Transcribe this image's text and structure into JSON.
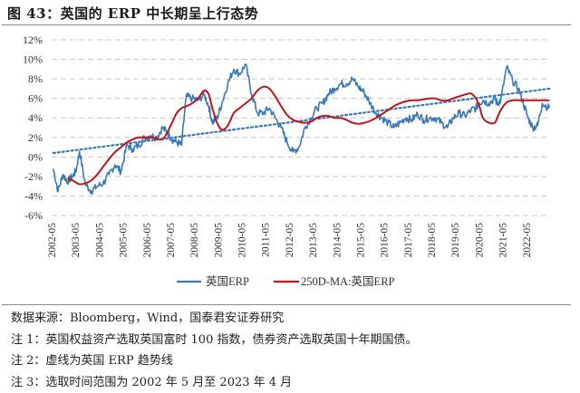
{
  "title": "图 43：英国的 ERP 中长期呈上行态势",
  "notes": {
    "source": "数据来源：Bloomberg，Wind，国泰君安证券研究",
    "note1": "注 1：英国权益资产选取英国富时 100 指数，债券资产选取英国十年期国债。",
    "note2": "注 2：虚线为英国 ERP 趋势线",
    "note3": "注 3：选取时间范围为 2002 年 5 月至 2023 年 4 月"
  },
  "colors": {
    "erp": "#3a78b8",
    "ma": "#c0141c",
    "trend": "#3a78b8",
    "grid": "#c8c8c8"
  },
  "chart_data": {
    "type": "line",
    "title": "图 43：英国的 ERP 中长期呈上行态势",
    "xlabel": "",
    "ylabel": "",
    "ylim": [
      -0.06,
      0.12
    ],
    "yticks": [
      "12%",
      "10%",
      "8%",
      "6%",
      "4%",
      "2%",
      "0%",
      "-2%",
      "-4%",
      "-6%"
    ],
    "xticks": [
      "2002-05",
      "2003-05",
      "2004-05",
      "2005-05",
      "2006-05",
      "2007-05",
      "2008-05",
      "2009-05",
      "2010-05",
      "2011-05",
      "2012-05",
      "2013-05",
      "2014-05",
      "2015-05",
      "2016-05",
      "2017-05",
      "2018-05",
      "2019-05",
      "2020-05",
      "2021-05",
      "2022-05"
    ],
    "grid": "horizontal dashed",
    "legend_position": "bottom",
    "legend": [
      "英国ERP",
      "250D-MA:英国ERP"
    ],
    "x": [
      2002.4,
      2002.6,
      2002.8,
      2003.0,
      2003.2,
      2003.35,
      2003.5,
      2003.75,
      2004.0,
      2004.25,
      2004.5,
      2004.75,
      2005.0,
      2005.25,
      2005.5,
      2005.75,
      2006.0,
      2006.25,
      2006.5,
      2006.75,
      2007.0,
      2007.2,
      2007.4,
      2007.6,
      2007.8,
      2008.0,
      2008.25,
      2008.5,
      2008.75,
      2008.95,
      2009.1,
      2009.3,
      2009.5,
      2009.75,
      2010.0,
      2010.25,
      2010.5,
      2010.75,
      2011.0,
      2011.25,
      2011.5,
      2011.75,
      2012.0,
      2012.25,
      2012.5,
      2012.75,
      2013.0,
      2013.25,
      2013.5,
      2013.75,
      2014.0,
      2014.25,
      2014.5,
      2014.75,
      2015.0,
      2015.25,
      2015.5,
      2015.75,
      2016.0,
      2016.25,
      2016.5,
      2016.75,
      2017.0,
      2017.25,
      2017.5,
      2017.75,
      2018.0,
      2018.25,
      2018.5,
      2018.75,
      2019.0,
      2019.25,
      2019.5,
      2019.75,
      2020.0,
      2020.2,
      2020.35,
      2020.5,
      2020.75,
      2021.0,
      2021.1,
      2021.25,
      2021.5,
      2021.75,
      2022.0,
      2022.2,
      2022.4,
      2022.6,
      2022.8,
      2023.0,
      2023.3
    ],
    "series": [
      {
        "name": "英国ERP",
        "values": [
          -0.012,
          -0.035,
          -0.018,
          -0.025,
          -0.02,
          -0.015,
          0.006,
          -0.028,
          -0.035,
          -0.03,
          -0.027,
          -0.018,
          -0.008,
          -0.015,
          0.012,
          0.008,
          0.012,
          0.02,
          0.022,
          0.02,
          0.03,
          0.025,
          0.018,
          0.015,
          0.012,
          0.062,
          0.06,
          0.058,
          0.064,
          0.052,
          0.035,
          0.04,
          0.055,
          0.075,
          0.09,
          0.085,
          0.095,
          0.065,
          0.045,
          0.045,
          0.05,
          0.04,
          0.03,
          0.015,
          0.005,
          0.01,
          0.03,
          0.04,
          0.05,
          0.055,
          0.065,
          0.07,
          0.075,
          0.075,
          0.08,
          0.072,
          0.066,
          0.055,
          0.045,
          0.04,
          0.035,
          0.03,
          0.035,
          0.04,
          0.038,
          0.044,
          0.038,
          0.04,
          0.04,
          0.035,
          0.03,
          0.04,
          0.045,
          0.042,
          0.048,
          0.05,
          0.055,
          0.058,
          0.055,
          0.06,
          0.055,
          0.058,
          0.092,
          0.078,
          0.07,
          0.055,
          0.04,
          0.03,
          0.032,
          0.055,
          0.05
        ],
        "color": "#3a78b8"
      },
      {
        "name": "250D-MA:英国ERP",
        "values": [
          null,
          null,
          null,
          -0.022,
          -0.024,
          -0.026,
          -0.028,
          -0.027,
          -0.024,
          -0.018,
          -0.01,
          -0.002,
          0.005,
          0.01,
          0.015,
          0.018,
          0.02,
          0.02,
          0.02,
          0.019,
          0.018,
          0.025,
          0.035,
          0.045,
          0.05,
          0.052,
          0.055,
          0.06,
          0.068,
          0.064,
          0.05,
          0.035,
          0.028,
          0.032,
          0.045,
          0.05,
          0.055,
          0.06,
          0.068,
          0.072,
          0.07,
          0.062,
          0.052,
          0.043,
          0.038,
          0.036,
          0.035,
          0.036,
          0.04,
          0.042,
          0.042,
          0.04,
          0.04,
          0.038,
          0.035,
          0.034,
          0.035,
          0.037,
          0.04,
          0.044,
          0.048,
          0.052,
          0.055,
          0.057,
          0.058,
          0.058,
          0.059,
          0.06,
          0.06,
          0.058,
          0.058,
          0.06,
          0.062,
          0.064,
          0.065,
          0.06,
          0.052,
          0.04,
          0.035,
          0.035,
          0.04,
          0.048,
          0.056,
          0.058,
          0.058,
          0.058,
          0.058,
          0.058,
          0.058,
          0.058,
          0.058
        ],
        "color": "#c0141c"
      },
      {
        "name": "趋势线",
        "style": "dotted",
        "x": [
          2002.4,
          2023.3
        ],
        "values": [
          0.004,
          0.07
        ],
        "color": "#3a78b8"
      }
    ]
  }
}
